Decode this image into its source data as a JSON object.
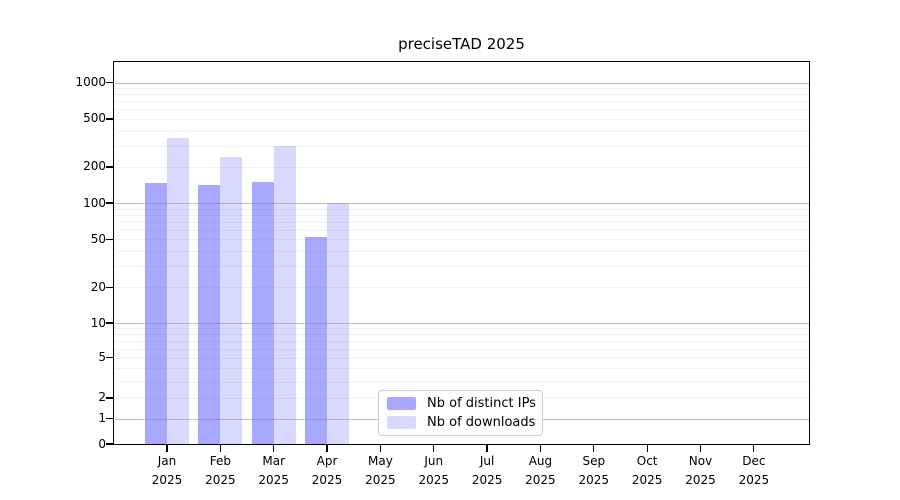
{
  "chart_data": {
    "type": "bar",
    "title": "preciseTAD 2025",
    "months": [
      "Jan",
      "Feb",
      "Mar",
      "Apr",
      "May",
      "Jun",
      "Jul",
      "Aug",
      "Sep",
      "Oct",
      "Nov",
      "Dec"
    ],
    "year": "2025",
    "series": [
      {
        "name": "Nb of distinct IPs",
        "color": "rgba(102,102,255,0.57)",
        "values": [
          146,
          141,
          149,
          52,
          0,
          0,
          0,
          0,
          0,
          0,
          0,
          0
        ]
      },
      {
        "name": "Nb of downloads",
        "color": "rgba(102,102,255,0.25)",
        "values": [
          345,
          242,
          297,
          100,
          0,
          0,
          0,
          0,
          0,
          0,
          0,
          0
        ]
      }
    ],
    "y_ticks": [
      0,
      1,
      2,
      5,
      10,
      20,
      50,
      100,
      200,
      500,
      1000
    ],
    "y_scale": "asinh",
    "ylim": [
      0,
      1400
    ],
    "grid": {
      "major_values": [
        1,
        10,
        100,
        1000
      ],
      "major_color": "#c4c4c4",
      "minor_color": "#efefef"
    },
    "legend_entries": [
      "Nb of distinct IPs",
      "Nb of downloads"
    ],
    "legend_position": "inside-bottom-center-left"
  },
  "colors": {
    "background": "#ffffff",
    "spine": "#000000",
    "text": "#000000"
  }
}
